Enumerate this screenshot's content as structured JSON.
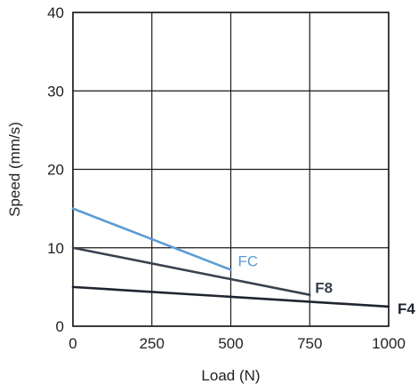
{
  "chart_data": {
    "type": "line",
    "title": "",
    "xlabel": "Load (N)",
    "ylabel": "Speed (mm/s)",
    "xlim": [
      0,
      1000
    ],
    "ylim": [
      0,
      40
    ],
    "xticks": [
      0,
      250,
      500,
      750,
      1000
    ],
    "yticks": [
      0,
      10,
      20,
      30,
      40
    ],
    "xtick_labels": [
      "0",
      "250",
      "500",
      "750",
      "1000"
    ],
    "ytick_labels": [
      "0",
      "10",
      "20",
      "30",
      "40"
    ],
    "grid": true,
    "legend": "none (labels at line ends)",
    "series": [
      {
        "name": "FC",
        "color": "#5b9bd5",
        "bold": false,
        "x": [
          0,
          500
        ],
        "y": [
          15,
          7.2
        ]
      },
      {
        "name": "F8",
        "color": "#3a4250",
        "bold": true,
        "x": [
          0,
          750
        ],
        "y": [
          10,
          4
        ]
      },
      {
        "name": "F4",
        "color": "#1f2530",
        "bold": true,
        "x": [
          0,
          1000
        ],
        "y": [
          5,
          2.5
        ]
      }
    ]
  }
}
